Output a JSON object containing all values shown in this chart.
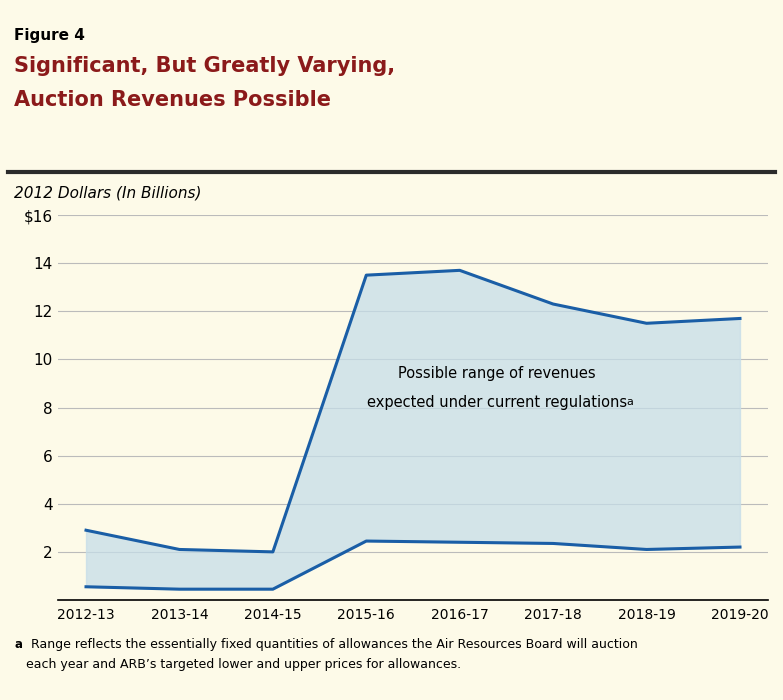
{
  "figure_label": "Figure 4",
  "title_line1": "Significant, But Greatly Varying,",
  "title_line2": "Auction Revenues Possible",
  "title_color": "#8B1A1A",
  "subtitle": "2012 Dollars (In Billions)",
  "background_color": "#FDFAE8",
  "x_labels": [
    "2012-13",
    "2013-14",
    "2014-15",
    "2015-16",
    "2016-17",
    "2017-18",
    "2018-19",
    "2019-20"
  ],
  "upper_line": [
    2.9,
    2.1,
    2.0,
    13.5,
    13.7,
    12.3,
    11.5,
    11.7
  ],
  "lower_line": [
    0.55,
    0.45,
    0.45,
    2.45,
    2.4,
    2.35,
    2.1,
    2.2
  ],
  "line_color": "#1A5EA6",
  "fill_color": "#C5DDE8",
  "fill_alpha": 0.75,
  "ylim": [
    0,
    16
  ],
  "yticks": [
    0,
    2,
    4,
    6,
    8,
    10,
    12,
    14,
    16
  ],
  "ytick_labels": [
    "",
    "2",
    "4",
    "6",
    "8",
    "10",
    "12",
    "14",
    "$16"
  ],
  "grid_color": "#BBBBBB",
  "separator_color": "#2B2B2B",
  "annotation_line1": "Possible range of revenues",
  "annotation_line2": "expected under current regulations",
  "annotation_superscript": "a",
  "footnote_super": "a",
  "footnote_line1": " Range reflects the essentially fixed quantities of allowances the Air Resources Board will auction",
  "footnote_line2": "   each year and ARB’s targeted lower and upper prices for allowances."
}
